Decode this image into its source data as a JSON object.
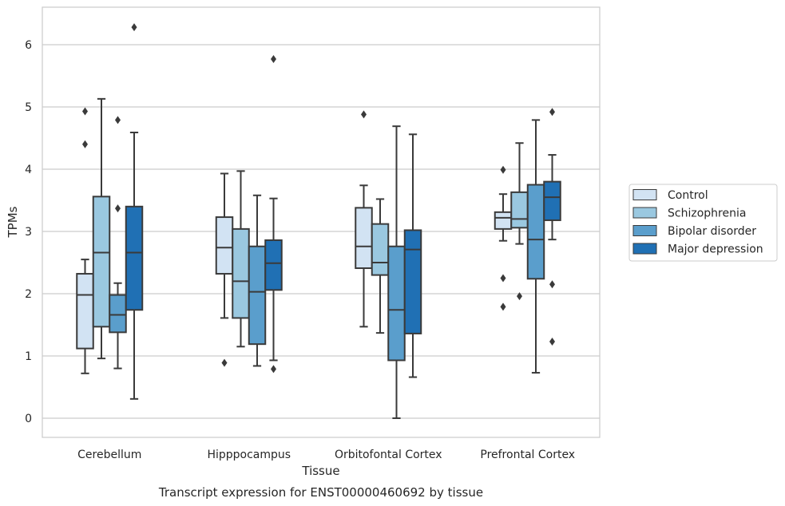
{
  "caption": "Transcript expression for ENST00000460692 by tissue",
  "chart_data": {
    "type": "box",
    "xlabel": "Tissue",
    "ylabel": "TPMs",
    "ylim": [
      -0.3,
      6.6
    ],
    "yticks": [
      0,
      1,
      2,
      3,
      4,
      5,
      6
    ],
    "grid": "horizontal",
    "legend_position": "right",
    "categories": [
      "Cerebellum",
      "Hipppocampus",
      "Orbitofontal Cortex",
      "Prefrontal Cortex"
    ],
    "series": [
      {
        "name": "Control",
        "color": "#d2e3f3",
        "boxes": [
          {
            "q1": 1.12,
            "median": 1.98,
            "q3": 2.32,
            "whisker_low": 0.72,
            "whisker_high": 2.55,
            "outliers": [
              4.4,
              4.93
            ]
          },
          {
            "q1": 2.32,
            "median": 2.74,
            "q3": 3.23,
            "whisker_low": 1.61,
            "whisker_high": 3.93,
            "outliers": [
              0.89
            ]
          },
          {
            "q1": 2.41,
            "median": 2.76,
            "q3": 3.38,
            "whisker_low": 1.47,
            "whisker_high": 3.74,
            "outliers": [
              4.88
            ]
          },
          {
            "q1": 3.04,
            "median": 3.22,
            "q3": 3.31,
            "whisker_low": 2.85,
            "whisker_high": 3.6,
            "outliers": [
              3.99,
              2.25,
              1.79
            ]
          }
        ]
      },
      {
        "name": "Schizophrenia",
        "color": "#9ac8e0",
        "boxes": [
          {
            "q1": 1.47,
            "median": 2.66,
            "q3": 3.56,
            "whisker_low": 0.96,
            "whisker_high": 5.13,
            "outliers": []
          },
          {
            "q1": 1.61,
            "median": 2.2,
            "q3": 3.04,
            "whisker_low": 1.15,
            "whisker_high": 3.97,
            "outliers": []
          },
          {
            "q1": 2.3,
            "median": 2.5,
            "q3": 3.12,
            "whisker_low": 1.37,
            "whisker_high": 3.52,
            "outliers": []
          },
          {
            "q1": 3.06,
            "median": 3.2,
            "q3": 3.63,
            "whisker_low": 2.8,
            "whisker_high": 4.42,
            "outliers": [
              1.96
            ]
          }
        ]
      },
      {
        "name": "Bipolar disorder",
        "color": "#5a9ecc",
        "boxes": [
          {
            "q1": 1.38,
            "median": 1.66,
            "q3": 1.98,
            "whisker_low": 0.8,
            "whisker_high": 2.17,
            "outliers": [
              3.37,
              4.79
            ]
          },
          {
            "q1": 1.19,
            "median": 2.03,
            "q3": 2.76,
            "whisker_low": 0.84,
            "whisker_high": 3.58,
            "outliers": []
          },
          {
            "q1": 0.93,
            "median": 1.74,
            "q3": 2.76,
            "whisker_low": 0.0,
            "whisker_high": 4.69,
            "outliers": []
          },
          {
            "q1": 2.24,
            "median": 2.87,
            "q3": 3.75,
            "whisker_low": 0.73,
            "whisker_high": 4.79,
            "outliers": []
          }
        ]
      },
      {
        "name": "Major depression",
        "color": "#2070b4",
        "boxes": [
          {
            "q1": 1.74,
            "median": 2.66,
            "q3": 3.4,
            "whisker_low": 0.31,
            "whisker_high": 4.59,
            "outliers": [
              6.28
            ]
          },
          {
            "q1": 2.06,
            "median": 2.49,
            "q3": 2.86,
            "whisker_low": 0.93,
            "whisker_high": 3.53,
            "outliers": [
              0.79,
              5.77
            ]
          },
          {
            "q1": 1.36,
            "median": 2.71,
            "q3": 3.02,
            "whisker_low": 0.66,
            "whisker_high": 4.56,
            "outliers": []
          },
          {
            "q1": 3.18,
            "median": 3.55,
            "q3": 3.8,
            "whisker_low": 2.87,
            "whisker_high": 4.23,
            "outliers": [
              4.92,
              2.15,
              1.23
            ]
          }
        ]
      }
    ]
  }
}
